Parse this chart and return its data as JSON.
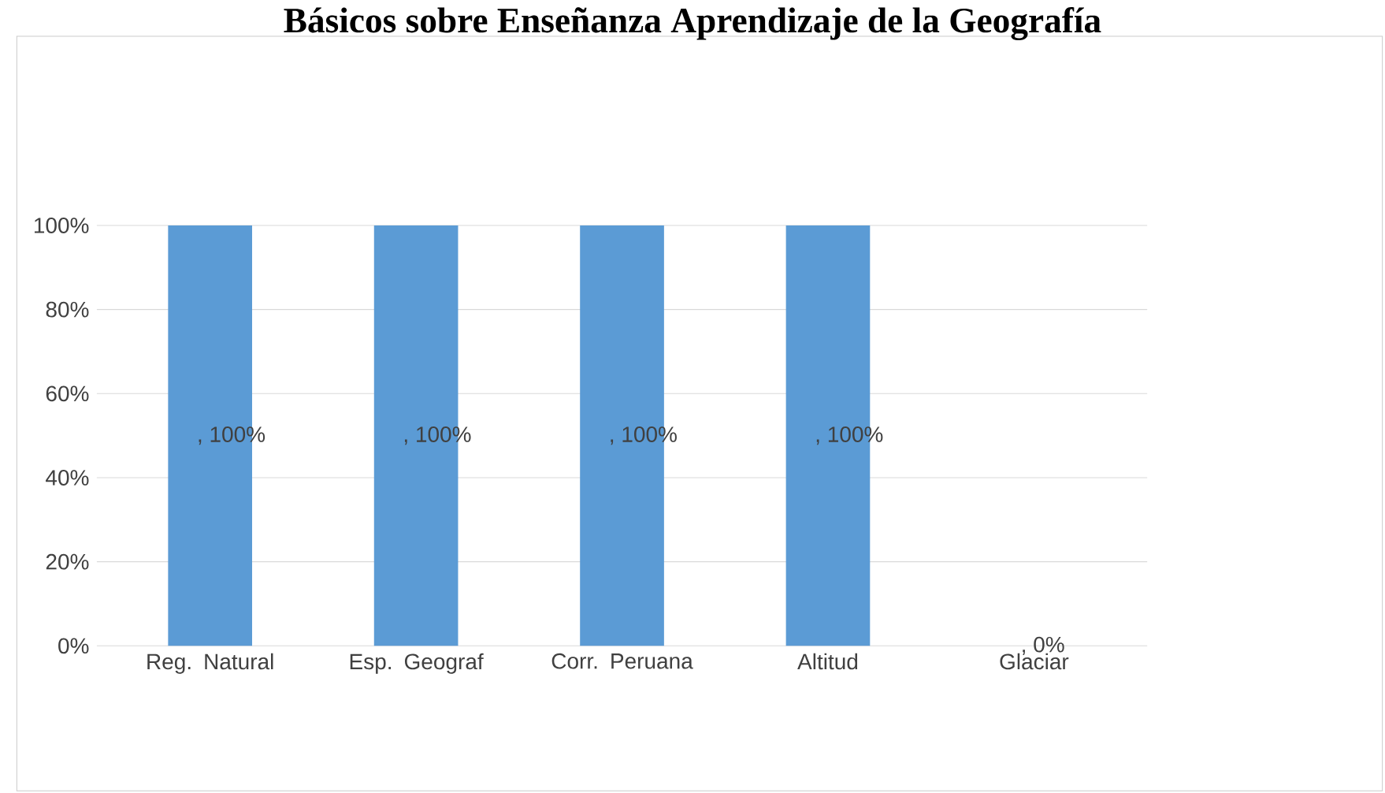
{
  "chart_data": {
    "type": "bar",
    "title": "Básicos sobre Enseñanza Aprendizaje de la Geografía",
    "categories": [
      "Reg. Natural",
      "Esp. Geograf",
      "Corr. Peruana",
      "Altitud",
      "Glaciar"
    ],
    "values": [
      100,
      100,
      100,
      100,
      0
    ],
    "value_labels": [
      ", 100%",
      ", 100%",
      ", 100%",
      ", 100%",
      ", 0%"
    ],
    "color": "#5b9bd5",
    "ylim": [
      0,
      100
    ],
    "yticks": [
      {
        "value": 0,
        "label": "0%"
      },
      {
        "value": 20,
        "label": "20%"
      },
      {
        "value": 40,
        "label": "40%"
      },
      {
        "value": 60,
        "label": "60%"
      },
      {
        "value": 80,
        "label": "80%"
      },
      {
        "value": 100,
        "label": "100%"
      }
    ],
    "grid": "y"
  }
}
